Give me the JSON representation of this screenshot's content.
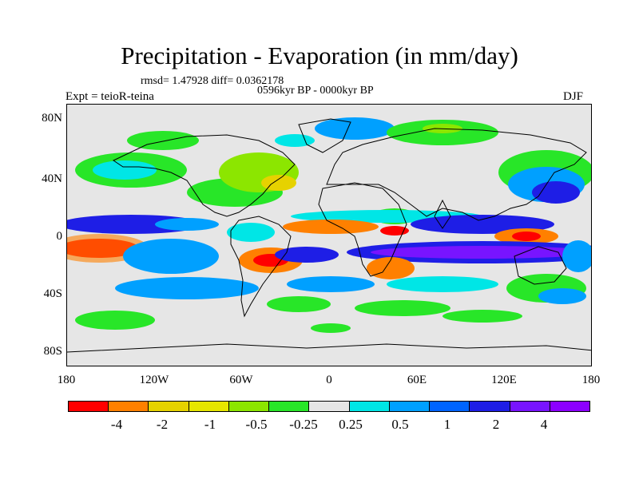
{
  "title": "Precipitation - Evaporation (in mm/day)",
  "stats": "rmsd= 1.47928 diff= 0.0362178",
  "period": "0596kyr BP - 0000kyr BP",
  "experiment": "Expt = teioR-teina",
  "season": "DJF",
  "map": {
    "projection": "equirectangular",
    "lon_range": [
      -180,
      180
    ],
    "lat_range": [
      -90,
      90
    ],
    "lat_ticks": [
      "80N",
      "40N",
      "0",
      "40S",
      "80S"
    ],
    "lon_ticks": [
      "180",
      "120W",
      "60W",
      "0",
      "60E",
      "120E",
      "180"
    ]
  },
  "colorbar": {
    "labels": [
      "-4",
      "-2",
      "-1",
      "-0.5",
      "-0.25",
      "0.25",
      "0.5",
      "1",
      "2",
      "4"
    ],
    "colors": [
      "#ff0000",
      "#ff8000",
      "#e6d200",
      "#e6e600",
      "#8ce600",
      "#28e628",
      "#e6e6e6",
      "#00e6e6",
      "#00a0ff",
      "#0064ff",
      "#1e1ee6",
      "#7814ff",
      "#8c00ff"
    ]
  },
  "palette": {
    "ocean_zero": "#e6e6e6",
    "coast": "#000000"
  }
}
